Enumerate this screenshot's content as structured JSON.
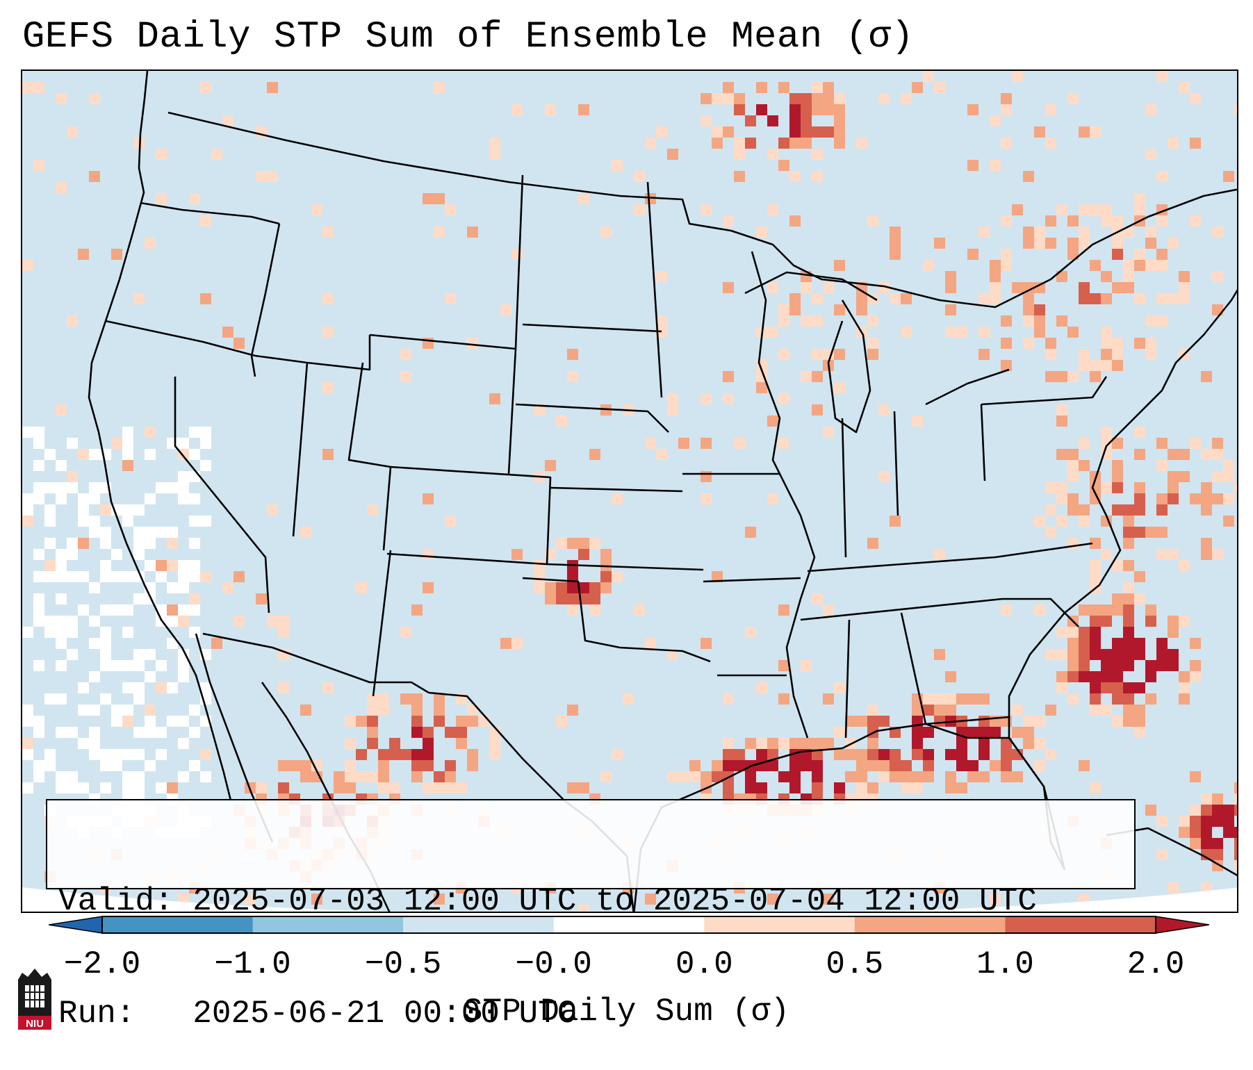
{
  "title": "GEFS Daily STP Sum of Ensemble Mean (σ)",
  "info": {
    "valid_line": "Valid: 2025-07-03 12:00 UTC to 2025-07-04 12:00 UTC",
    "run_line": "Run:   2025-06-21 00:00 UTC"
  },
  "colorbar": {
    "label": "STP Daily Sum (σ)",
    "ticks": [
      "−2.0",
      "−1.0",
      "−0.5",
      "−0.0",
      "0.0",
      "0.5",
      "1.0",
      "2.0"
    ],
    "colors": [
      "#2166ac",
      "#4393c3",
      "#92c5de",
      "#d1e5f0",
      "#ffffff",
      "#fddbc7",
      "#f4a582",
      "#d6604d",
      "#b2182b"
    ]
  },
  "map": {
    "region": "Continental United States",
    "ocean_color": "#d1e5f0",
    "outside_domain_color": "#ffffff"
  },
  "logo": {
    "text": "NIU"
  }
}
